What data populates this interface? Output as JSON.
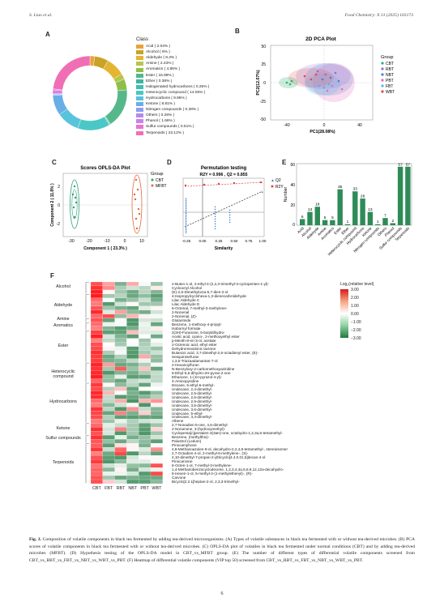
{
  "header": {
    "left": "S. Liao et al.",
    "right": "Food Chemistry: X 31 (2025) 103173"
  },
  "panel_labels": [
    "A",
    "B",
    "C",
    "D",
    "E",
    "F"
  ],
  "panelA": {
    "legend_title": "Class",
    "items": [
      {
        "label": "Acid ( 2.04% )",
        "color": "#e8a33d",
        "value": 2.04
      },
      {
        "label": "Alcohol ( 6% )",
        "color": "#c9a227",
        "value": 6
      },
      {
        "label": "Aldehyde ( 8.3% )",
        "color": "#e3b531",
        "value": 8.3
      },
      {
        "label": "Amine ( 2.43% )",
        "color": "#b5c64a",
        "value": 2.43
      },
      {
        "label": "Aromatics ( 4.85% )",
        "color": "#8fbf4a",
        "value": 4.85
      },
      {
        "label": "Ester ( 16.99% )",
        "color": "#56b88a",
        "value": 16.99
      },
      {
        "label": "Ether ( 0.38% )",
        "color": "#3fb6a0",
        "value": 0.38
      },
      {
        "label": "Halogenated hydrocarbons ( 0.26% )",
        "color": "#3dbfb7",
        "value": 0.26
      },
      {
        "label": "Heterocyclic compound ( 14.05% )",
        "color": "#4cc7c7",
        "value": 14.05
      },
      {
        "label": "Hydrocarbons ( 9.96% )",
        "color": "#58c3dc",
        "value": 9.96
      },
      {
        "label": "Ketone ( 8.81% )",
        "color": "#6aaee6",
        "value": 8.81
      },
      {
        "label": "Nitrogen compounds ( 0.38% )",
        "color": "#8c9ef0",
        "value": 0.38
      },
      {
        "label": "Others ( 0.26% )",
        "color": "#b08cf0",
        "value": 0.26
      },
      {
        "label": "Phenol ( 1.66% )",
        "color": "#d47ee8",
        "value": 1.66
      },
      {
        "label": "Sulfur compounds ( 0.51% )",
        "color": "#e874d2",
        "value": 0.51
      },
      {
        "label": "Terpenoids ( 23.12% )",
        "color": "#f06fb4",
        "value": 23.12
      }
    ]
  },
  "panelB": {
    "title": "2D PCA Plot",
    "xlabel": "PC1(28.08%)",
    "ylabel": "PC2(12.07%)",
    "xticks": [
      "-40",
      "0",
      "40"
    ],
    "yticks": [
      "50",
      "25",
      "0",
      "-25",
      "-50"
    ],
    "legend_title": "Group",
    "groups": [
      {
        "name": "CBT",
        "color": "#2fb36b"
      },
      {
        "name": "RBT",
        "color": "#8a6fd6"
      },
      {
        "name": "NBT",
        "color": "#4a7fd0"
      },
      {
        "name": "PBT",
        "color": "#e36bb8"
      },
      {
        "name": "FBT",
        "color": "#56b5e6"
      },
      {
        "name": "WBT",
        "color": "#e04a4a"
      }
    ]
  },
  "panelC": {
    "title": "Scores OPLS-DA Plot",
    "xlabel": "Component 1 ( 23.3% )",
    "ylabel": "Component 2 ( 11.8% )",
    "xticks": [
      "-30",
      "-20",
      "-10",
      "0",
      "10"
    ],
    "yticks": [
      "2",
      "0",
      "-2"
    ],
    "legend_title": "Group",
    "groups": [
      {
        "name": "CBT",
        "color": "#2fa07a"
      },
      {
        "name": "MFBT",
        "color": "#e06a3a"
      }
    ]
  },
  "panelD": {
    "title": "Permutation testing",
    "stats": "R2Y = 0.996 ,  Q2 = 0.855",
    "xlabel": "Similarity",
    "xticks": [
      "-0.25",
      "0.00",
      "0.25",
      "0.50",
      "0.75",
      "1.00"
    ],
    "legend": [
      {
        "name": "Q2",
        "color": "#3f7fc8"
      },
      {
        "name": "R2Y",
        "color": "#e0463f"
      }
    ]
  },
  "panelE": {
    "ylabel": "Number",
    "yticks": [
      "0",
      "20",
      "40",
      "60"
    ],
    "bar_color": "#2e8b57",
    "categories": [
      "Acid",
      "Alcohol",
      "Aldehyde",
      "Amine",
      "Aromatics",
      "Ester",
      "Ether",
      "Heterocyclic compound",
      "Hydrocarbons",
      "Ketone",
      "Nitrogen compounds",
      "Others",
      "Phenol",
      "Sulfur compounds",
      "Terpenoids"
    ],
    "values": [
      6,
      13,
      18,
      5,
      5,
      35,
      1,
      33,
      26,
      13,
      1,
      7,
      2,
      57,
      57
    ]
  },
  "panelF": {
    "legend_title": "Log₂(relative level)",
    "scale": [
      "3.00",
      "2.00",
      "1.00",
      "0.00",
      "−1.00",
      "−2.00",
      "−3.00"
    ],
    "columns": [
      "CBT",
      "FBT",
      "RBT",
      "NBT",
      "PBT",
      "WBT"
    ],
    "groups": [
      {
        "name": "Alcohol"
      },
      {
        "name": "Aldehyde"
      },
      {
        "name": "Amine"
      },
      {
        "name": "Aromatics"
      },
      {
        "name": "Ester"
      },
      {
        "name": "Heterocyclic compound"
      },
      {
        "name": "Hydrocarbons"
      },
      {
        "name": "Ketone"
      },
      {
        "name": "Sulfur compounds"
      },
      {
        "name": "Terpenoids"
      }
    ],
    "compounds": [
      "2-Buten-1-ol, 2-ethyl-4-(2,2,3-trimethyl-3-cyclopenten-1-yl)-",
      "Cyclooctyl Alcohol",
      "(E)-2,6-Dimethylocta-5,7-dien-2-ol",
      "4-Isopropylcyclohexa-1,3-dienecarbAldehyde",
      "Lilac Aldehyde C",
      "Lilac Aldehyde D",
      "6-Octenal, 7-methyl-3-methylene-",
      "2-Nonenal",
      "2-Nonenal, (Z)-",
      "Glutarimide",
      "Benzene, 1-methoxy-4-propyl-",
      "Isobornyl formate",
      "2(3H)-Furanone, 5-butyldihydro-",
      "Acetic acid, cyano-, 2-methoxyethyl ester",
      "p-Menth-8-en-3-ol, acetate",
      "2-Octenoic acid, ethyl ester",
      "Dehydromevalonic lactone",
      "Butanoic acid, 3,7-dimethyl-2,6-octadienyl ester, (E)-",
      "Sesquirosefuran",
      "1,3,5-Triazaadamantan-7-ol",
      "2-Hexanoylfuran",
      "N-Benzyloxy-2-carbomethoxyaziridine",
      "6-Ethyl-5,6-dihydro-2H-pyran-2-one",
      "Ethanone, 1-(1H-pyrazol-4-yl)-",
      "4-Aminopyridine",
      "Decane, 5-ethyl-5-methyl-",
      "Undecane, 2,4-dimethyl-",
      "Undecane, 2,5-dimethyl-",
      "Undecane, 2,6-dimethyl-",
      "Undecane, 2,9-dimethyl-",
      "Undecane, 3,5-dimethyl-",
      "Undecane, 3,6-dimethyl-",
      "Undecane, 5-ethyl-",
      "Undecane, 3,4-dimethyl-",
      "Albene",
      "2,7-Nonadien-5-one, 4,6-dimethyl-",
      "2-Nonanone, 3-(hydroxymethyl)-",
      "Cyclopenta[c]pentalen-3(3aH)-one, octahydro-1,2,3a,6-tetramethyl-",
      "Benzene, (methylthio)-",
      "Palustrol (Ledum)",
      "Pinocamphone",
      "4,8-Methanoazulen-9-ol, decahydro-2,2,4,8-tetramethyl-, stereoisomer",
      "2,7-Octadien-4-ol, 2-methyl-6-methylene-, (S)-",
      "4,10-dimethyl-7-propan-2-yltricyclo[4.4.0.01,5]decan-4-ol",
      "Pinocarvone",
      "6-Octen-1-ol, 7-methyl-3-methylene-",
      "1,4-Methanobenzocyclodecene, 1,2,3,4,4a,5,8,9,12,12a-decahydro-",
      "6-Hexen-1-ol, 5-methyl-2-(1-methylethenyl)-, (R)-",
      "Carvone",
      "Bicyclo[2.2.1]heptan-2-ol, 2,3,3-trimethyl-"
    ]
  },
  "caption": {
    "lead": "Fig. 3.",
    "text": "Composition of volatile components in black tea fermented by adding tea-derived microorganisms. (A) Types of volatile substances in black tea fermented with or without tea-derived microbes. (B) PCA scores of volatile components in black tea fermented with or without tea-derived microbes. (C) OPLS-DA plot of volatiles in black tea fermented under normal conditions (CBT) and by adding tea-derived microbes (MFBT). (D) Hypothesis testing of the OPLS-DA model in CBT_vs_MFBT group. (E) The number of different types of differential volatile components screened from CBT_vs_RBT_vs_FBT_vs_NBT_vs_WBT_vs_PBT. (F) Heatmap of differential volatile components (VIP top 50) screened from CBT_vs_RBT_vs_FBT_vs_NBT_vs_WBT_vs_PBT."
  },
  "page_number": "6"
}
